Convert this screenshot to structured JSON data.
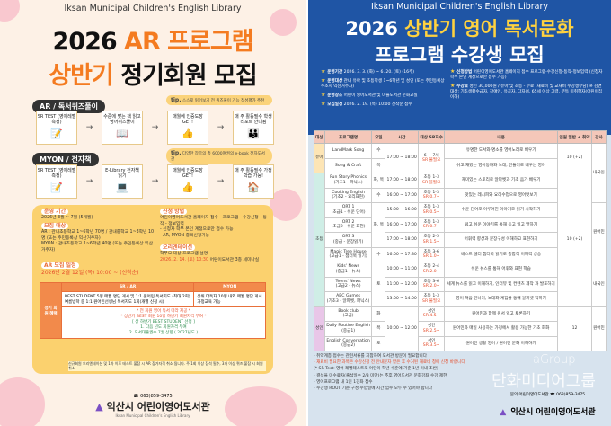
{
  "left_poster": {
    "subtitle": "Iksan Municipal Children's English Library",
    "title_line1_black": "2026 ",
    "title_line1_orange": "AR 프로그램",
    "title_line2_orange": "상반기 ",
    "title_line2_black": "정기회원 모집",
    "sections": [
      {
        "tag": "AR / 독서퀴즈풀이",
        "tip_label": "tip.",
        "tip": "스스로 읽어보기 전 퀴즈풀이 기능 적성평가 추천",
        "steps": [
          {
            "text": "SR TEST (영어레벨측정)",
            "icon": "pencil-icon",
            "glyph": "📝"
          },
          {
            "text": "수준에 맞는 책 읽고 영어퀴즈풀이",
            "icon": "book-icon",
            "glyph": "📖"
          },
          {
            "text": "매월에 인증도장 GET!",
            "icon": "thumbs-up-icon",
            "glyph": "👍"
          },
          {
            "text": "매 주 활동필수 학생리포트 안내됨",
            "icon": "people-icon",
            "glyph": "👪"
          }
        ]
      },
      {
        "tag": "MYON / 전자책",
        "tip_label": "tip.",
        "tip": "다양한 장르의 총 6000여권의 e-book 전자도서관",
        "steps": [
          {
            "text": "SR TEST (영어레벨측정)",
            "icon": "pencil-icon",
            "glyph": "📝"
          },
          {
            "text": "E-Library 전자책 읽기",
            "icon": "laptop-icon",
            "glyph": "💻"
          },
          {
            "text": "매월에 인증도장 GET!",
            "icon": "thumbs-up-icon",
            "glyph": "👍"
          },
          {
            "text": "매 주 활동필수 가정학습 가능!",
            "icon": "home-icon",
            "glyph": "🏠"
          }
        ]
      }
    ],
    "period_label": "운영 기간",
    "period": "2026년 3월 ~ 7월 (5개월)",
    "target_label": "모집 대상",
    "target_ar": "AR : 관내초등학교 1~6학년 70명 / 관내중학교 1~3학년 10명 (또는 주민등록상 익산거주자)",
    "target_myon": "MYON : 관내초등학교 1~6학년 40명 (또는 주민등록상 익산거주자)",
    "apply_label": "신청 방법",
    "apply": "어린이영어도서관 홈페이지 접수 - 프로그램 - 수강신청 - 동작 - 정보입력",
    "apply_note1": "- 신청자 학부 본인 계정으로만 접수 가능",
    "apply_note2": "- AR, MYON 중복신청가능",
    "orientation_label": "오리엔테이션",
    "orientation": "학부모 대상 프로그램 설명",
    "orientation_date": "2026. 2. 14. (토) 10:30",
    "orientation_place": "어린이도서관 3층 세미나실",
    "schedule_label": "AR 모집 일정",
    "schedule": "2026년 2월 12일 (목) 10:00 ~ (선착순)",
    "table": {
      "row_head": "정기 회원 혜택",
      "col1": "SR / AR",
      "col2": "MYON",
      "c1a": "BEST STUDENT 5명 매월 명단 게시 및 1:1 원어민 독서지도 (최대 2회)",
      "c1b": "여름방학 중 1:1 원어민선생님 독서지도 1회(개별 신청 시)",
      "c2a": "상위 다독자 10명 내외 매월 명단 게시",
      "c2b": "가정교육 가능",
      "note1": "* 전 회원 영어 독서 마라 제공 *",
      "note2": "* 상반기 BEST 회원 10명 하반기 회원자격 부여 *",
      "best_title": "[ 상 하반기 BEST STUDENT 선정 ]",
      "best1": "1. 다음 년도 회원자격 부여",
      "best2": "2. 도서대출권수 7권 상향 ( 2027년도 )"
    },
    "footer_note": "신규회원 오리엔테이션 및 1차 이후 테스트 불참 시 AR 참가자격 취소 됩니다. 주 1회 이상 참석 필수, 3개 이상 퀴즈 불참 시 회원 취소",
    "phone": "☎ 063)859-3475",
    "library_name": "익산시 어린이영어도서관",
    "library_name_en": "Iksan Municipal Children's English Library"
  },
  "right_poster": {
    "subtitle": "Iksan Municipal Children's English Library",
    "title_line1_white": "2026 ",
    "title_line1_yellow": "상반기 영어 독서문화",
    "title_line2": "프로그램 수강생 모집",
    "info_left": [
      {
        "label": "운영기간",
        "value": "2026. 3. 3. (화) ~ 6. 20. (토) (16주)"
      },
      {
        "label": "운영대상",
        "value": "관내 유아 및 초등학생 1~6학년 및 성인 (또는 주민등록상 주소지 익산거주자)"
      },
      {
        "label": "운영장소",
        "value": "어린이 영어도서관 및 마을도서관 문화교실"
      },
      {
        "label": "모집일정",
        "value": "2026. 2. 19. (목) 10:00 선착순 접수"
      }
    ],
    "info_right": [
      {
        "label": "신청방법",
        "value": "어린이영어도서관 홈페이지 접수 프로그램-수강신청-동작-정보입력 (신청자 학부 본인 계정으로만 접수 가능)"
      },
      {
        "label": "수강료",
        "value": "성인 30,000원 / 유아 및 초등 - 무료 (재료비 및 교재비 수강생부담) ※ 감면 대상: 기초생활수급자, 장애인, 유공자, 다자녀, 65세 이상 고령, 부득 미취학자(어린이집 이하)"
      }
    ],
    "table_headers": [
      "대상",
      "프로그램명",
      "요일",
      "시간",
      "대상 SR지수",
      "내용",
      "인원 일반 + 취약",
      "강사"
    ],
    "groups": [
      {
        "name": "유아",
        "span": 2
      },
      {
        "name": "초등",
        "span": 9
      },
      {
        "name": "성인",
        "span": 3
      }
    ],
    "rows": [
      {
        "program": "LandMark Song",
        "sub": "",
        "day": "수",
        "time": "17:00 ~ 18:00",
        "target": "6 ~ 7세",
        "sr": "SR 불필요",
        "content": "유명한 도서와 명소를 영어노래로 배우기"
      },
      {
        "program": "Song & Craft",
        "sub": "",
        "day": "목",
        "time": "",
        "target": "",
        "sr": "",
        "content": "쉬고 재밌는 영어동화와 노래, 만들기로 배우는 영어"
      },
      {
        "program": "Fun Story Phonics",
        "sub": "(기초1 - 파닉스)",
        "day": "화, 목",
        "time": "17:00 ~ 18:00",
        "target": "초등 1-3",
        "sr": "SR 불필요",
        "content": "재미있는 스토리로 알파벳과 기초 음가 배우기"
      },
      {
        "program": "Cooking English",
        "sub": "(기초2 - 요리표현)",
        "day": "수",
        "time": "16:00 ~ 17:00",
        "target": "초등 1-3",
        "sr": "SR 0.7~",
        "content": "맛있는 레시피와 요리수업으로 영어맛보기"
      },
      {
        "program": "ORT 1",
        "sub": "(초급1 - 쉬운 단어)",
        "day": "화, 목",
        "time": "15:00 ~ 16:00",
        "target": "초등 1-3",
        "sr": "SR 0.5~",
        "content": "쉬운 단어로 이루어진 이야기로 읽기 시작하기"
      },
      {
        "program": "ORT 2",
        "sub": "(초급2 - 쉬운 표현)",
        "day": "",
        "time": "16:00 ~ 17:00",
        "target": "초등 1-3",
        "sr": "SR 0.7~",
        "content": "쉽고 쉬운 이야기를 통해 듣고 읽고 말하기"
      },
      {
        "program": "ORT 3",
        "sub": "(중급 - 문장읽기)",
        "day": "",
        "time": "17:00 ~ 18:00",
        "target": "초등 2-5",
        "sr": "SR 1.5~",
        "content": "어휘력 향상과 문장구성 이해하고 표현하기"
      },
      {
        "program": "Magic Tree House",
        "sub": "(고급1 - 챕터북 읽기)",
        "day": "수",
        "time": "16:00 ~ 17:30",
        "target": "초등 3-6",
        "sr": "SR 1.0~",
        "content": "베스트 셀러 챕터북 읽기로 종합적 이해력 상승"
      },
      {
        "program": "Kids' News",
        "sub": "(중급1 - 뉴스)",
        "day": "토",
        "time": "10:00 ~ 11:00",
        "target": "초등 2-4",
        "sr": "SR 2.0~",
        "content": "쉬운 뉴스를 통해 어휘와 표현 학습"
      },
      {
        "program": "Teens' News",
        "sub": "(고급2 - 뉴스)",
        "day": "",
        "time": "11:00 ~ 12:00",
        "target": "초등 3-6",
        "sr": "SR 2.0~",
        "content": "세계 뉴스를 읽고 이해하기, 인터뷰 및 컨텐츠 제작 과 발표하기"
      },
      {
        "program": "ABC Games",
        "sub": "(기초3 - 알파벳, 파닉스)",
        "day": "",
        "time": "13:00 ~ 14:00",
        "target": "초등 1-3",
        "sr": "SR 불필요",
        "content": "영어 처음 만나기, 노래와 게임을 통해 알파벳 익히기"
      },
      {
        "program": "Book club",
        "sub": "(고급)",
        "day": "화",
        "time": "10:00 ~ 12:00",
        "target": "성인",
        "sr": "SR 4.5~",
        "content": "원어민과 함께 원서 읽고 토론하기"
      },
      {
        "program": "Daily Routine English",
        "sub": "(중급1)",
        "day": "목",
        "time": "",
        "target": "성인",
        "sr": "SR 2.5~",
        "content": "원어민과 매일 사용하는 가정에서 활용 가능한 기초 회화"
      },
      {
        "program": "English Conversation",
        "sub": "(중급2)",
        "day": "토",
        "time": "",
        "target": "성인",
        "sr": "SR 3.5~",
        "content": "원어민 생활 영어 / 원어민 문화 이해하기"
      }
    ],
    "day_spans": [
      1,
      1,
      1,
      1,
      3,
      0,
      0,
      1,
      3,
      0,
      0,
      1,
      1,
      1
    ],
    "time_spans": [
      2,
      0,
      1,
      1,
      1,
      1,
      1,
      1,
      1,
      1,
      1,
      3,
      0,
      0
    ],
    "target_spans": [
      2,
      0,
      1,
      1,
      1,
      1,
      1,
      1,
      1,
      1,
      1,
      1,
      1,
      1
    ],
    "capacity": [
      {
        "value": "10 (+2)",
        "span": 2
      },
      {
        "value": "10 (+2)",
        "span": 9
      },
      {
        "value": "12",
        "span": 3
      }
    ],
    "instructor": [
      {
        "value": "내국인",
        "span": 4
      },
      {
        "value": "원어민",
        "span": 4
      },
      {
        "value": "내국인",
        "span": 3
      },
      {
        "value": "원어민",
        "span": 3
      }
    ],
    "notes": [
      "- 취약계층 접수는 관련서류를 지참하여 도서관 방문이 필요합니다",
      "- 재료비 필요한 과목은 수강신청 전 안내문자 받은 후 수거된 재료비 청에 신청 바랍니다",
      "(* SR Test: 영어 레벨테스트로 어린이 학년 수준에 기준 1년 이내 초반)",
      "- 결석을 미수료자(출석일수 2/3 미만)는 추후 영어도서관 문화강좌 수강 제한",
      "- 영어프로그램 내 1인 1강좌 접수",
      "- 수강생 ROUT 기준 구성 수업일에 시간 엄수 모두 수 있어야 합니다"
    ],
    "footer_contact": "문의 어린이영어도서관 ☎ 063)859-3475",
    "library_name": "익산시 어린이영어도서관",
    "watermark_en": "aGroup",
    "watermark_ko": "단화미디어그룹"
  },
  "colors": {
    "orange": "#f47b20",
    "blue": "#1f55a5",
    "yellow": "#ffd23f",
    "peach": "#fdf1e6"
  }
}
